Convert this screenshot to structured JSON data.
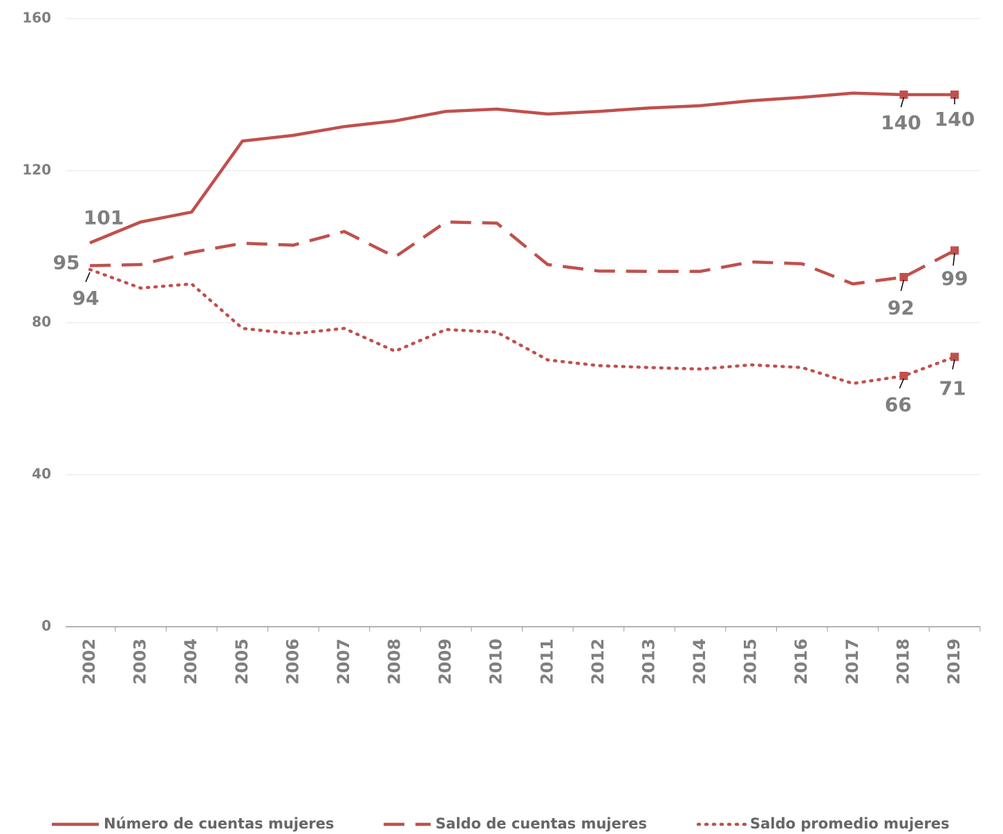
{
  "chart_data": {
    "type": "line",
    "categories": [
      "2002",
      "2003",
      "2004",
      "2005",
      "2006",
      "2007",
      "2008",
      "2009",
      "2010",
      "2011",
      "2012",
      "2013",
      "2014",
      "2015",
      "2016",
      "2017",
      "2018",
      "2019"
    ],
    "series": [
      {
        "name": "Número de cuentas mujeres",
        "color": "#c0504d",
        "style": "solid",
        "values": [
          101,
          106.5,
          109.1,
          127.8,
          129.3,
          131.6,
          133.1,
          135.6,
          136.2,
          134.9,
          135.6,
          136.5,
          137.1,
          138.4,
          139.3,
          140.4,
          140,
          140
        ]
      },
      {
        "name": "Saldo de cuentas mujeres",
        "color": "#c0504d",
        "style": "dashed",
        "values": [
          95,
          95.3,
          98.5,
          100.9,
          100.4,
          104,
          97.3,
          106.5,
          106.2,
          95.3,
          93.6,
          93.5,
          93.5,
          96,
          95.5,
          90.2,
          92,
          99
        ]
      },
      {
        "name": "Saldo promedio mujeres",
        "color": "#c0504d",
        "style": "dotted",
        "values": [
          94,
          89.1,
          90.2,
          78.5,
          77.1,
          78.5,
          72.5,
          78.2,
          77.5,
          70.2,
          68.7,
          68.2,
          67.8,
          68.9,
          68.2,
          64,
          66,
          71
        ]
      }
    ],
    "ylim": [
      0,
      160
    ],
    "yticks": [
      0,
      40,
      80,
      120,
      160
    ],
    "grid": true,
    "legend": "bottom"
  }
}
